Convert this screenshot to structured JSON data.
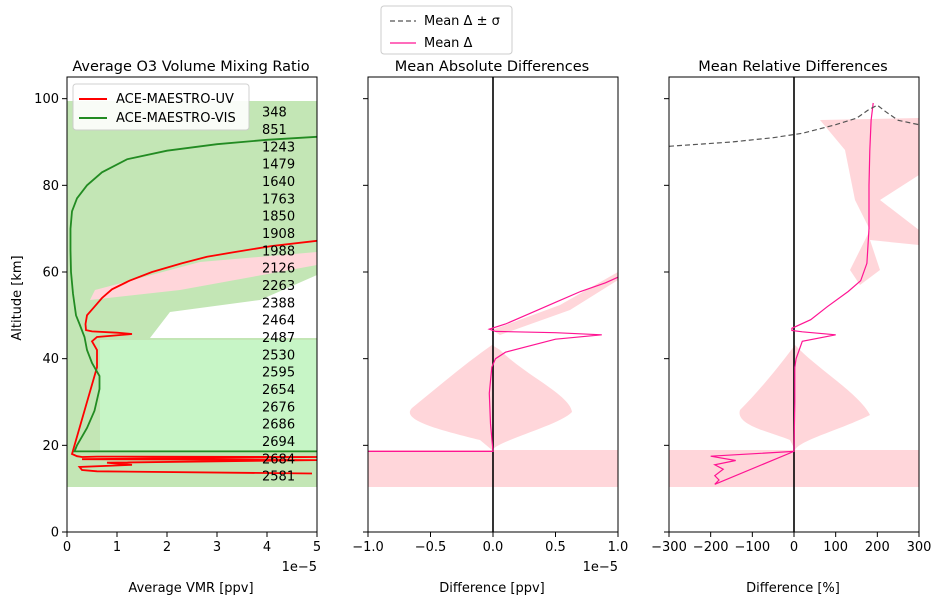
{
  "figure_legend": {
    "entries": [
      {
        "label": "Mean Δ ± σ",
        "color": "#555555",
        "dash": true
      },
      {
        "label": "Mean Δ",
        "color": "#ff1493",
        "dash": false
      }
    ]
  },
  "chart_data": [
    {
      "type": "line",
      "title": "Average O3 Volume Mixing Ratio",
      "xlabel": "Average VMR [ppv]",
      "ylabel": "Altitude [km]",
      "xlim": [
        0,
        5e-05
      ],
      "ylim": [
        0,
        105
      ],
      "xticks": [
        0,
        1e-05,
        2e-05,
        3e-05,
        4e-05,
        5e-05
      ],
      "xticklabels": [
        "0",
        "1",
        "2",
        "3",
        "4",
        "5"
      ],
      "x_offset_text": "1e−5",
      "yticks": [
        0,
        20,
        40,
        60,
        80,
        100
      ],
      "yticklabels": [
        "0",
        "20",
        "40",
        "60",
        "80",
        "100"
      ],
      "legend_position": "upper-left",
      "series": [
        {
          "name": "ACE-MAESTRO-UV",
          "color": "#ff0000",
          "points": [
            [
              4.9e-05,
              13.5
            ],
            [
              6e-06,
              14
            ],
            [
              3e-06,
              14.3
            ],
            [
              2.5e-06,
              15
            ],
            [
              1.3e-05,
              15.5
            ],
            [
              8e-06,
              16
            ],
            [
              5e-05,
              16.6
            ],
            [
              3e-06,
              16.8
            ],
            [
              5e-05,
              17.3
            ],
            [
              6e-06,
              17.4
            ],
            [
              3e-06,
              17.3
            ],
            [
              2e-06,
              17.5
            ],
            [
              1e-06,
              18
            ],
            [
              6e-06,
              38
            ],
            [
              6e-06,
              42
            ],
            [
              5e-06,
              44
            ],
            [
              6e-06,
              45
            ],
            [
              1.3e-05,
              45.7
            ],
            [
              1e-05,
              46
            ],
            [
              5e-06,
              46.3
            ],
            [
              3.8e-06,
              46.6
            ],
            [
              3.7e-06,
              48
            ],
            [
              4e-06,
              50
            ],
            [
              5.5e-06,
              52
            ],
            [
              7e-06,
              54
            ],
            [
              9e-06,
              56
            ],
            [
              1.25e-05,
              58
            ],
            [
              1.7e-05,
              60
            ],
            [
              2.3e-05,
              62
            ],
            [
              2.8e-05,
              63.5
            ],
            [
              3.3e-05,
              64.5
            ],
            [
              4.1e-05,
              66
            ],
            [
              5e-05,
              67.2
            ]
          ]
        },
        {
          "name": "ACE-MAESTRO-VIS",
          "color": "#228b22",
          "points": [
            [
              5e-05,
              18.6
            ],
            [
              1.5e-06,
              18.6
            ],
            [
              2e-06,
              20
            ],
            [
              4e-06,
              24
            ],
            [
              5.5e-06,
              28
            ],
            [
              6.5e-06,
              33
            ],
            [
              6.5e-06,
              36
            ],
            [
              5e-06,
              39
            ],
            [
              4e-06,
              42
            ],
            [
              3.5e-06,
              45
            ],
            [
              2.5e-06,
              48
            ],
            [
              1.8e-06,
              50
            ],
            [
              1.2e-06,
              55
            ],
            [
              8e-07,
              60
            ],
            [
              7e-07,
              65
            ],
            [
              7e-07,
              70
            ],
            [
              1e-06,
              74
            ],
            [
              2e-06,
              77
            ],
            [
              4e-06,
              80
            ],
            [
              7e-06,
              83
            ],
            [
              1.2e-05,
              86
            ],
            [
              2e-05,
              88
            ],
            [
              3e-05,
              89.5
            ],
            [
              4e-05,
              90.5
            ],
            [
              5e-05,
              91.2
            ]
          ]
        }
      ],
      "shaded_regions": [
        {
          "name": "green-band",
          "color": "#c3e6b5",
          "y_from": 10.5,
          "y_to": 100
        },
        {
          "name": "red-band",
          "color": "#ffd6da"
        }
      ],
      "annotations": [
        "348",
        "851",
        "1243",
        "1479",
        "1640",
        "1763",
        "1850",
        "1908",
        "1988",
        "2126",
        "2263",
        "2388",
        "2464",
        "2487",
        "2530",
        "2595",
        "2654",
        "2676",
        "2686",
        "2694",
        "2684",
        "2581"
      ],
      "annotation_altitudes": [
        97,
        93,
        89,
        85,
        81,
        77,
        73,
        69,
        65,
        61,
        57,
        53,
        49,
        45,
        41,
        37,
        33,
        29,
        25,
        21,
        17,
        13
      ]
    },
    {
      "type": "line",
      "title": "Mean Absolute Differences",
      "xlabel": "Difference [ppv]",
      "ylabel": "",
      "xlim": [
        -1e-05,
        1e-05
      ],
      "ylim": [
        0,
        105
      ],
      "xticks": [
        -1e-05,
        -5e-06,
        0,
        5e-06,
        1e-05
      ],
      "xticklabels": [
        "−1.0",
        "−0.5",
        "0.0",
        "0.5",
        "1.0"
      ],
      "x_offset_text": "1e−5",
      "series": [
        {
          "name": "Mean Δ",
          "color": "#ff1493",
          "points": [
            [
              -1e-05,
              18.6
            ],
            [
              0,
              18.6
            ],
            [
              -2e-07,
              25
            ],
            [
              -3e-07,
              32
            ],
            [
              -1e-07,
              38
            ],
            [
              2e-07,
              40
            ],
            [
              1e-06,
              41.5
            ],
            [
              5e-06,
              44.5
            ],
            [
              8.7e-06,
              45.5
            ],
            [
              5e-06,
              46
            ],
            [
              2e-07,
              46.3
            ],
            [
              -3e-07,
              46.8
            ],
            [
              1e-06,
              48
            ],
            [
              3e-06,
              50.5
            ],
            [
              5e-06,
              53
            ],
            [
              7e-06,
              55.5
            ],
            [
              9e-06,
              57.5
            ],
            [
              1e-05,
              58.8
            ]
          ]
        }
      ],
      "shaded_regions": [
        {
          "name": "sigma-band",
          "color": "#ffd6da"
        }
      ]
    },
    {
      "type": "line",
      "title": "Mean Relative Differences",
      "xlabel": "Difference [%]",
      "ylabel": "",
      "xlim": [
        -300,
        300
      ],
      "ylim": [
        0,
        105
      ],
      "xticks": [
        -300,
        -200,
        -100,
        0,
        100,
        200,
        300
      ],
      "xticklabels": [
        "−300",
        "−200",
        "−100",
        "0",
        "100",
        "200",
        "300"
      ],
      "series": [
        {
          "name": "Mean Δ",
          "color": "#ff1493",
          "points": [
            [
              0,
              18.6
            ],
            [
              -200,
              17.5
            ],
            [
              -140,
              16.5
            ],
            [
              -190,
              15.5
            ],
            [
              -170,
              14.5
            ],
            [
              -190,
              13
            ],
            [
              -180,
              12
            ],
            [
              -190,
              11
            ],
            [
              0,
              18.6
            ],
            [
              2,
              30
            ],
            [
              2,
              38
            ],
            [
              5,
              40
            ],
            [
              20,
              44
            ],
            [
              100,
              45.5
            ],
            [
              20,
              46.2
            ],
            [
              -5,
              46.5
            ],
            [
              -5,
              47
            ],
            [
              40,
              49
            ],
            [
              80,
              52
            ],
            [
              130,
              55.5
            ],
            [
              160,
              58
            ],
            [
              175,
              62
            ],
            [
              180,
              70
            ],
            [
              180,
              80
            ],
            [
              182,
              88
            ],
            [
              185,
              95
            ],
            [
              190,
              99
            ]
          ]
        },
        {
          "name": "Mean Δ ± σ",
          "color": "#555555",
          "dashed": true,
          "points": [
            [
              -300,
              89
            ],
            [
              -150,
              90
            ],
            [
              -50,
              91
            ],
            [
              20,
              92
            ],
            [
              100,
              94
            ],
            [
              150,
              95.5
            ],
            [
              180,
              97.5
            ],
            [
              200,
              98.5
            ],
            [
              220,
              97
            ],
            [
              250,
              95
            ],
            [
              300,
              94
            ]
          ]
        }
      ],
      "shaded_regions": [
        {
          "name": "sigma-band",
          "color": "#ffd6da"
        }
      ]
    }
  ]
}
